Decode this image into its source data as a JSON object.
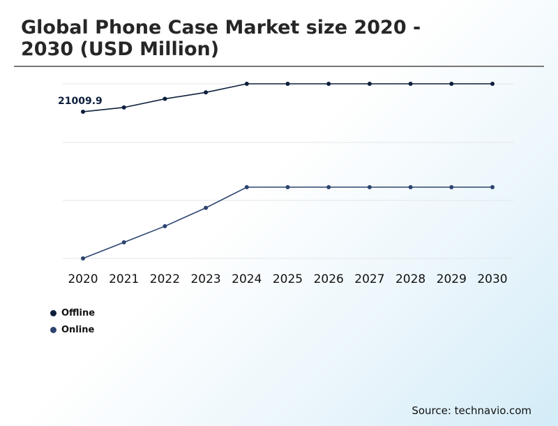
{
  "header": {
    "title": "Global Phone Case Market size 2020 - 2030 (USD Million)"
  },
  "footer": {
    "source": "Source: technavio.com"
  },
  "chart_data": {
    "type": "line",
    "title": "Global Phone Case Market size 2020 - 2030 (USD Million)",
    "x": [
      "2020",
      "2021",
      "2022",
      "2023",
      "2024",
      "2025",
      "2026",
      "2027",
      "2028",
      "2029",
      "2030"
    ],
    "annotation": "21009.9",
    "grid": true,
    "legend": "bottom-left",
    "y_axis_labels": false,
    "series": [
      {
        "name": "Offline",
        "color": "#0d1f3c",
        "values": [
          21009.9,
          21209.9,
          21609.9,
          21909.9,
          22309.9,
          22309.9,
          22309.9,
          22309.9,
          22309.9,
          22309.9,
          22309.9
        ]
      },
      {
        "name": "Online",
        "color": "#2d4470",
        "values": [
          15000,
          15700,
          16400,
          17200,
          18100,
          18100,
          18100,
          18100,
          18100,
          18100,
          18100
        ]
      }
    ]
  }
}
